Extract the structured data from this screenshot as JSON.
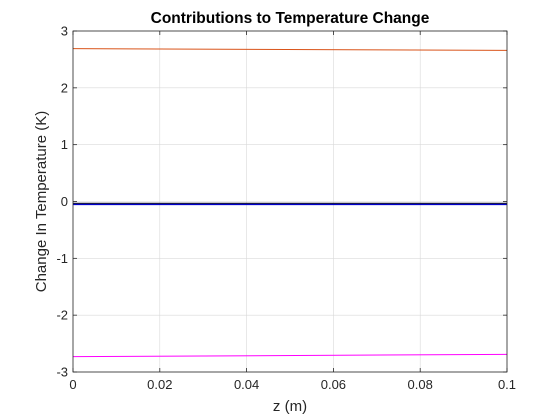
{
  "chart_data": {
    "type": "line",
    "title": "Contributions to Temperature Change",
    "xlabel": "z (m)",
    "ylabel": "Change In Temperature (K)",
    "xlim": [
      0,
      0.1
    ],
    "ylim": [
      -3,
      3
    ],
    "xticks": [
      0,
      0.02,
      0.04,
      0.06,
      0.08,
      0.1
    ],
    "xtick_labels": [
      "0",
      "0.02",
      "0.04",
      "0.06",
      "0.08",
      "0.1"
    ],
    "yticks": [
      -3,
      -2,
      -1,
      0,
      1,
      2,
      3
    ],
    "ytick_labels": [
      "-3",
      "-2",
      "-1",
      "0",
      "1",
      "2",
      "3"
    ],
    "grid": true,
    "series": [
      {
        "color": "#D95319",
        "x": [
          0,
          0.1
        ],
        "y": [
          2.69,
          2.66
        ]
      },
      {
        "color": "#0000CC",
        "x": [
          0,
          0.1
        ],
        "y": [
          -0.05,
          -0.05
        ]
      },
      {
        "color": "#202020",
        "x": [
          0,
          0.1
        ],
        "y": [
          -0.03,
          -0.03
        ]
      },
      {
        "color": "#FF00FF",
        "x": [
          0,
          0.1
        ],
        "y": [
          -2.73,
          -2.69
        ]
      }
    ]
  }
}
